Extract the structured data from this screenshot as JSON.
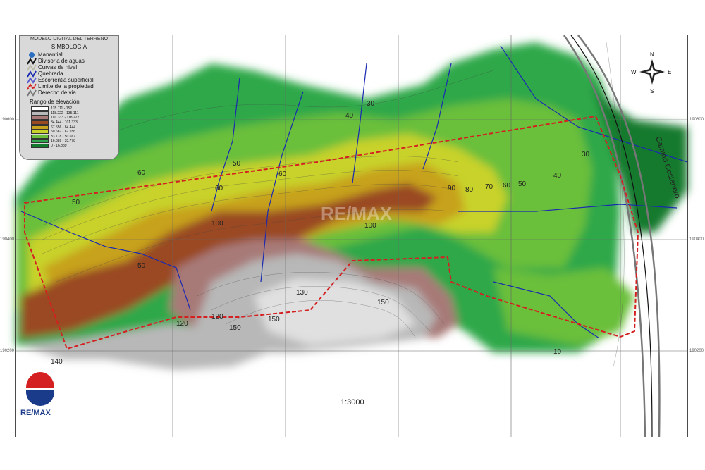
{
  "legend": {
    "title": "MODELO DIGITAL DEL TERRENO",
    "subtitle": "SIMBOLOGIA",
    "symbols": [
      {
        "label": "Manantial",
        "color": "#2a6fc0",
        "icon": "spring-dot-icon"
      },
      {
        "label": "Divisoria de aguas",
        "color": "#111111",
        "icon": "zigzag-line-icon"
      },
      {
        "label": "Curvas de nivel",
        "color": "#bbbbaa",
        "icon": "zigzag-line-icon"
      },
      {
        "label": "Quebrada",
        "color": "#1a2ab0",
        "icon": "zigzag-line-icon"
      },
      {
        "label": "Escorrentia superficial",
        "color": "#5a5ad0",
        "icon": "zigzag-line-icon"
      },
      {
        "label": "Limite de la propiedad",
        "color": "#d42020",
        "icon": "dashed-line-icon"
      },
      {
        "label": "Derecho de via",
        "color": "#777777",
        "icon": "zigzag-line-icon"
      }
    ],
    "range_title": "Rango de elevación",
    "ranges": [
      {
        "label": "135.111 - 152",
        "color": "#ffffff"
      },
      {
        "label": "118.222 - 135.111",
        "color": "#b8b8b8"
      },
      {
        "label": "101.333 - 118.222",
        "color": "#a77a78"
      },
      {
        "label": "84.444 - 101.333",
        "color": "#9a4a22"
      },
      {
        "label": "67.556 - 84.444",
        "color": "#c7a21a"
      },
      {
        "label": "50.667 - 67.556",
        "color": "#c8d22a"
      },
      {
        "label": "33.778 - 50.667",
        "color": "#6abf3a"
      },
      {
        "label": "16.889 - 33.778",
        "color": "#2ea84a"
      },
      {
        "label": "0 - 16.889",
        "color": "#137a2e"
      }
    ]
  },
  "axis_labels": [
    "190600",
    "190400",
    "190200"
  ],
  "contour_labels": [
    "40",
    "30",
    "60",
    "50",
    "60",
    "50",
    "90",
    "80",
    "70",
    "60",
    "50",
    "40",
    "30",
    "100",
    "100",
    "150",
    "120",
    "150",
    "150",
    "140",
    "130",
    "120",
    "60",
    "50",
    "10"
  ],
  "road_label": "Camino Costanero",
  "scale": "1:3000",
  "compass": {
    "n": "N",
    "s": "S",
    "e": "E",
    "w": "W"
  },
  "logo": "RE/MAX",
  "watermark": "RE/MAX"
}
